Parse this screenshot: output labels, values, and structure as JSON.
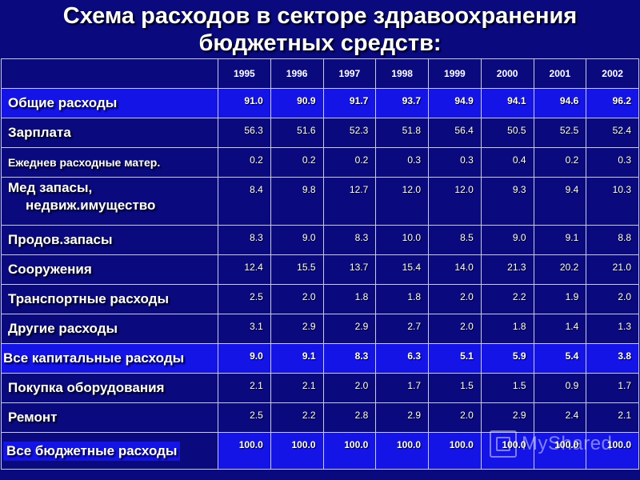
{
  "title": {
    "line1": "Схема расходов в секторе здравоохранения",
    "line2": "бюджетных средств:"
  },
  "years": [
    "1995",
    "1996",
    "1997",
    "1998",
    "1999",
    "2000",
    "2001",
    "2002"
  ],
  "rows": [
    {
      "label": "Общие расходы",
      "values": [
        "91.0",
        "90.9",
        "91.7",
        "93.7",
        "94.9",
        "94.1",
        "94.6",
        "96.2"
      ]
    },
    {
      "label": "Зарплата",
      "values": [
        "56.3",
        "51.6",
        "52.3",
        "51.8",
        "56.4",
        "50.5",
        "52.5",
        "52.4"
      ]
    },
    {
      "label": "Ежеднев расходные матер.",
      "values": [
        "0.2",
        "0.2",
        "0.2",
        "0.3",
        "0.3",
        "0.4",
        "0.2",
        "0.3"
      ]
    },
    {
      "label_line1": "Мед запасы,",
      "label_line2": "недвиж.имущество",
      "values": [
        "8.4",
        "9.8",
        "12.7",
        "12.0",
        "12.0",
        "9.3",
        "9.4",
        "10.3"
      ]
    },
    {
      "label": "Продов.запасы",
      "values": [
        "8.3",
        "9.0",
        "8.3",
        "10.0",
        "8.5",
        "9.0",
        "9.1",
        "8.8"
      ]
    },
    {
      "label": "Сооружения",
      "values": [
        "12.4",
        "15.5",
        "13.7",
        "15.4",
        "14.0",
        "21.3",
        "20.2",
        "21.0"
      ]
    },
    {
      "label": "Транспортные расходы",
      "values": [
        "2.5",
        "2.0",
        "1.8",
        "1.8",
        "2.0",
        "2.2",
        "1.9",
        "2.0"
      ]
    },
    {
      "label": "Другие расходы",
      "values": [
        "3.1",
        "2.9",
        "2.9",
        "2.7",
        "2.0",
        "1.8",
        "1.4",
        "1.3"
      ]
    },
    {
      "label": "Все капитальные расходы",
      "values": [
        "9.0",
        "9.1",
        "8.3",
        "6.3",
        "5.1",
        "5.9",
        "5.4",
        "3.8"
      ]
    },
    {
      "label": "Покупка оборудования",
      "values": [
        "2.1",
        "2.1",
        "2.0",
        "1.7",
        "1.5",
        "1.5",
        "0.9",
        "1.7"
      ]
    },
    {
      "label": "Ремонт",
      "values": [
        "2.5",
        "2.2",
        "2.8",
        "2.9",
        "2.0",
        "2.9",
        "2.4",
        "2.1"
      ]
    },
    {
      "label": "Все бюджетные расходы",
      "values": [
        "100.0",
        "100.0",
        "100.0",
        "100.0",
        "100.0",
        "100.0",
        "100.0",
        "100.0"
      ]
    }
  ],
  "watermark": {
    "text": "MyShared",
    "icon": "presentation-icon"
  },
  "colors": {
    "background": "#0a0a7e",
    "highlight": "#1414e6",
    "text": "#ffffff"
  }
}
